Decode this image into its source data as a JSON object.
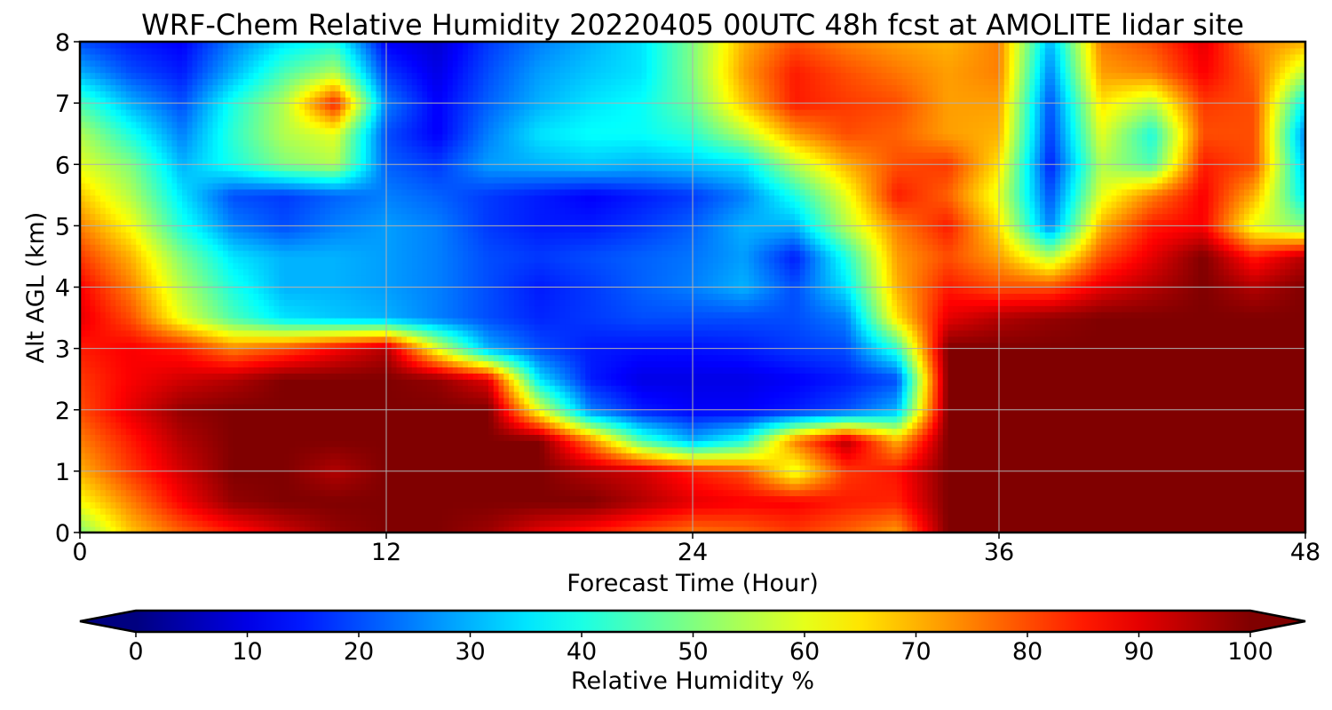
{
  "chart_data": {
    "type": "heatmap",
    "title": "WRF-Chem Relative Humidity 20220405 00UTC 48h fcst at AMOLITE lidar site",
    "xlabel": "Forecast Time (Hour)",
    "ylabel": "Alt AGL (km)",
    "xlim": [
      0,
      48
    ],
    "ylim": [
      0,
      8
    ],
    "xticks": [
      0,
      12,
      24,
      36,
      48
    ],
    "yticks": [
      0,
      1,
      2,
      3,
      4,
      5,
      6,
      7,
      8
    ],
    "grid": true,
    "colormap": "jet",
    "colorbar": {
      "label": "Relative Humidity %",
      "orientation": "horizontal",
      "position": "bottom",
      "min": 0,
      "max": 100,
      "ticks": [
        0,
        10,
        20,
        30,
        40,
        50,
        60,
        70,
        80,
        90,
        100
      ],
      "extend": "both"
    },
    "x": [
      0,
      2,
      4,
      6,
      8,
      10,
      12,
      14,
      16,
      18,
      20,
      22,
      24,
      26,
      28,
      30,
      32,
      34,
      36,
      38,
      40,
      42,
      44,
      46,
      48
    ],
    "y": [
      0,
      0.5,
      1,
      1.5,
      2,
      2.5,
      3,
      3.5,
      4,
      4.5,
      5,
      5.5,
      6,
      6.5,
      7,
      7.5,
      8
    ],
    "z": [
      [
        50,
        68,
        78,
        85,
        92,
        98,
        100,
        100,
        97,
        90,
        85,
        80,
        76,
        78,
        82,
        78,
        72,
        100,
        100,
        100,
        100,
        100,
        100,
        100,
        100
      ],
      [
        62,
        75,
        88,
        98,
        100,
        100,
        100,
        100,
        100,
        100,
        100,
        95,
        90,
        88,
        88,
        85,
        84,
        100,
        100,
        100,
        100,
        100,
        100,
        100,
        100
      ],
      [
        70,
        82,
        92,
        100,
        100,
        95,
        100,
        100,
        100,
        100,
        95,
        92,
        85,
        80,
        60,
        82,
        86,
        100,
        100,
        100,
        100,
        100,
        100,
        100,
        100
      ],
      [
        75,
        85,
        95,
        100,
        100,
        100,
        100,
        100,
        100,
        100,
        75,
        45,
        30,
        40,
        75,
        95,
        70,
        100,
        100,
        100,
        100,
        100,
        100,
        100,
        100
      ],
      [
        80,
        90,
        98,
        100,
        100,
        100,
        100,
        100,
        100,
        60,
        25,
        15,
        12,
        12,
        15,
        20,
        30,
        100,
        100,
        100,
        100,
        100,
        100,
        100,
        100
      ],
      [
        82,
        88,
        92,
        95,
        100,
        100,
        100,
        98,
        90,
        35,
        15,
        10,
        10,
        10,
        12,
        15,
        20,
        100,
        100,
        100,
        100,
        100,
        100,
        100,
        100
      ],
      [
        85,
        88,
        85,
        75,
        80,
        88,
        95,
        60,
        30,
        20,
        15,
        14,
        14,
        15,
        18,
        20,
        42,
        100,
        100,
        100,
        100,
        100,
        100,
        100,
        100
      ],
      [
        90,
        80,
        60,
        45,
        35,
        32,
        30,
        25,
        20,
        16,
        18,
        20,
        20,
        20,
        20,
        25,
        65,
        90,
        95,
        98,
        100,
        100,
        100,
        100,
        100
      ],
      [
        88,
        75,
        55,
        40,
        30,
        30,
        28,
        25,
        20,
        15,
        18,
        22,
        25,
        30,
        20,
        35,
        70,
        85,
        80,
        80,
        90,
        95,
        100,
        95,
        100
      ],
      [
        82,
        70,
        50,
        35,
        30,
        30,
        28,
        25,
        20,
        18,
        20,
        22,
        24,
        28,
        15,
        40,
        72,
        80,
        72,
        55,
        80,
        90,
        100,
        85,
        95
      ],
      [
        75,
        62,
        40,
        25,
        20,
        25,
        28,
        25,
        18,
        15,
        15,
        18,
        22,
        30,
        30,
        55,
        75,
        85,
        65,
        25,
        70,
        85,
        88,
        60,
        50
      ],
      [
        68,
        55,
        35,
        20,
        18,
        22,
        25,
        22,
        18,
        15,
        12,
        15,
        18,
        25,
        40,
        60,
        85,
        78,
        60,
        20,
        60,
        75,
        88,
        70,
        35
      ],
      [
        60,
        50,
        30,
        40,
        50,
        55,
        22,
        18,
        28,
        30,
        32,
        30,
        32,
        35,
        55,
        70,
        80,
        82,
        65,
        15,
        55,
        45,
        85,
        80,
        30
      ],
      [
        55,
        40,
        25,
        42,
        55,
        60,
        20,
        12,
        25,
        35,
        38,
        38,
        42,
        55,
        72,
        80,
        78,
        72,
        70,
        18,
        60,
        40,
        80,
        80,
        25
      ],
      [
        45,
        30,
        20,
        40,
        55,
        85,
        25,
        12,
        22,
        30,
        35,
        38,
        48,
        68,
        85,
        82,
        80,
        72,
        72,
        20,
        65,
        55,
        82,
        80,
        35
      ],
      [
        30,
        20,
        15,
        30,
        45,
        55,
        18,
        10,
        20,
        28,
        32,
        35,
        50,
        72,
        85,
        80,
        76,
        72,
        75,
        25,
        72,
        75,
        88,
        78,
        55
      ],
      [
        20,
        15,
        12,
        25,
        35,
        40,
        12,
        8,
        18,
        25,
        30,
        35,
        50,
        70,
        80,
        75,
        72,
        70,
        75,
        30,
        75,
        80,
        90,
        75,
        70
      ]
    ]
  }
}
